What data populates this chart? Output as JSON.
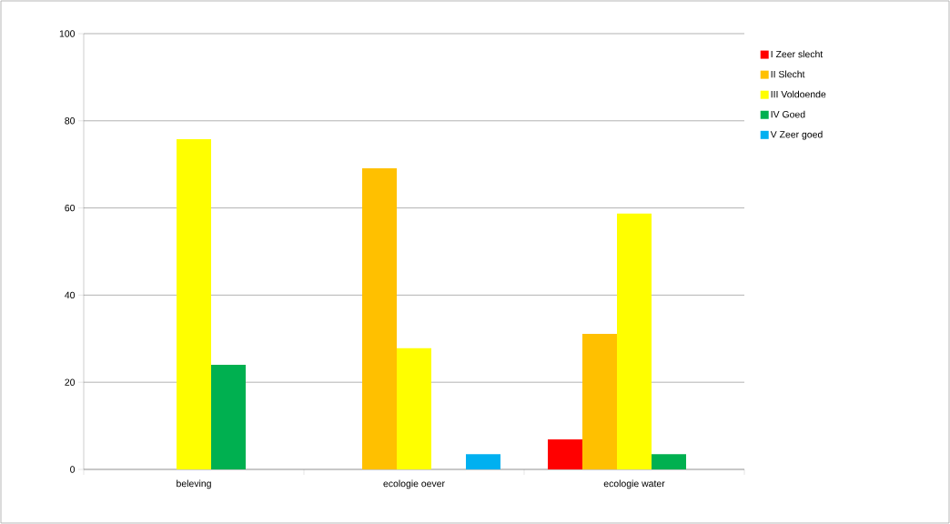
{
  "chart_data": {
    "type": "bar",
    "categories": [
      "beleving",
      "ecologie oever",
      "ecologie water"
    ],
    "series": [
      {
        "name": "I Zeer slecht",
        "color": "#ff0000",
        "values": [
          null,
          null,
          6.9
        ]
      },
      {
        "name": "II Slecht",
        "color": "#ffc000",
        "values": [
          null,
          69.1,
          31.1
        ]
      },
      {
        "name": "III Voldoende",
        "color": "#ffff00",
        "values": [
          75.8,
          27.8,
          58.7
        ]
      },
      {
        "name": "IV Goed",
        "color": "#00b050",
        "values": [
          24.0,
          null,
          3.5
        ]
      },
      {
        "name": "V Zeer goed",
        "color": "#00b0f0",
        "values": [
          null,
          3.5,
          null
        ]
      }
    ],
    "ylim": [
      0,
      100
    ],
    "yticks": [
      0,
      20,
      40,
      60,
      80,
      100
    ],
    "grid": "y",
    "legend": "right"
  }
}
